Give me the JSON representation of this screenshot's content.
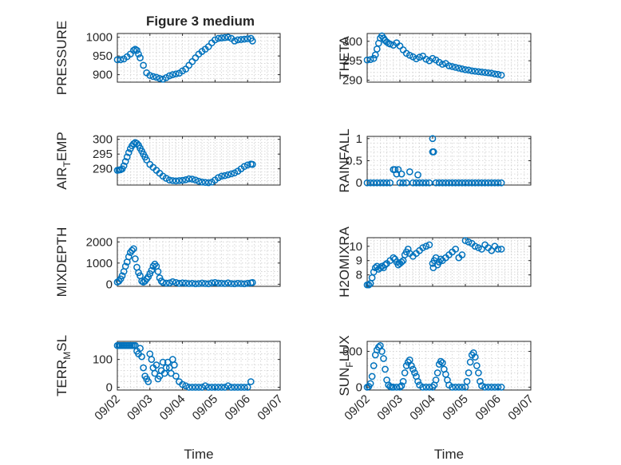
{
  "figure_title": "Figure 3 medium",
  "marker_color": "#0072BD",
  "x_axis": {
    "label": "Time",
    "ticks": [
      "09/02",
      "09/03",
      "09/04",
      "09/05",
      "09/06",
      "09/07"
    ],
    "range": [
      0,
      5
    ]
  },
  "chart_data": [
    {
      "type": "scatter",
      "name": "pressure",
      "column": "left",
      "ylabel": "PRESSURE",
      "ylabel_sub": "",
      "ylabel_tail": "",
      "ylim": [
        880,
        1010
      ],
      "yticks": [
        900,
        950,
        1000
      ],
      "yticklabels": [
        "900",
        "950",
        "1000"
      ],
      "grid": true,
      "x": [
        0.0,
        0.1,
        0.2,
        0.3,
        0.4,
        0.5,
        0.55,
        0.6,
        0.65,
        0.7,
        0.8,
        0.9,
        1.0,
        1.1,
        1.2,
        1.3,
        1.4,
        1.5,
        1.6,
        1.7,
        1.8,
        1.9,
        2.0,
        2.1,
        2.2,
        2.3,
        2.4,
        2.5,
        2.6,
        2.7,
        2.8,
        2.9,
        3.0,
        3.1,
        3.2,
        3.3,
        3.4,
        3.5,
        3.6,
        3.7,
        3.8,
        3.9,
        4.0,
        4.1,
        4.15
      ],
      "y": [
        940,
        940,
        942,
        948,
        955,
        965,
        968,
        965,
        955,
        945,
        925,
        905,
        898,
        895,
        893,
        890,
        888,
        892,
        897,
        900,
        902,
        904,
        910,
        915,
        925,
        935,
        945,
        955,
        962,
        968,
        975,
        985,
        993,
        997,
        998,
        999,
        1000,
        997,
        990,
        993,
        994,
        995,
        996,
        997,
        990
      ]
    },
    {
      "type": "scatter",
      "name": "theta",
      "column": "right",
      "ylabel": "THETA",
      "ylabel_sub": "",
      "ylabel_tail": "",
      "ylim": [
        289.5,
        302
      ],
      "yticks": [
        290,
        295,
        300
      ],
      "yticklabels": [
        "290",
        "295",
        "300"
      ],
      "grid": true,
      "x": [
        0.0,
        0.1,
        0.2,
        0.25,
        0.3,
        0.35,
        0.4,
        0.45,
        0.5,
        0.55,
        0.6,
        0.65,
        0.7,
        0.8,
        0.9,
        1.0,
        1.1,
        1.2,
        1.3,
        1.4,
        1.5,
        1.6,
        1.7,
        1.8,
        1.9,
        2.0,
        2.1,
        2.2,
        2.3,
        2.4,
        2.5,
        2.6,
        2.7,
        2.8,
        2.9,
        3.0,
        3.1,
        3.2,
        3.3,
        3.4,
        3.5,
        3.6,
        3.7,
        3.8,
        3.9,
        4.0,
        4.1
      ],
      "y": [
        295.2,
        295.3,
        295.6,
        296.5,
        298.0,
        299.5,
        300.8,
        301.4,
        300.8,
        300.2,
        299.8,
        299.5,
        299.3,
        299.0,
        299.6,
        298.8,
        297.8,
        296.9,
        296.4,
        296.0,
        295.5,
        295.9,
        296.2,
        295.4,
        295.0,
        295.6,
        295.2,
        294.6,
        294.1,
        294.3,
        293.7,
        293.5,
        293.3,
        293.1,
        292.9,
        292.7,
        292.6,
        292.4,
        292.3,
        292.2,
        292.1,
        292.0,
        291.9,
        291.8,
        291.6,
        291.5,
        291.3
      ]
    },
    {
      "type": "scatter",
      "name": "air_temp",
      "column": "left",
      "ylabel": "AIR",
      "ylabel_sub": "T",
      "ylabel_tail": "EMP",
      "ylim": [
        284.5,
        301
      ],
      "yticks": [
        290,
        295,
        300
      ],
      "yticklabels": [
        "290",
        "295",
        "300"
      ],
      "grid": true,
      "x": [
        0.0,
        0.05,
        0.1,
        0.15,
        0.2,
        0.25,
        0.3,
        0.35,
        0.4,
        0.45,
        0.5,
        0.55,
        0.6,
        0.65,
        0.7,
        0.75,
        0.8,
        0.85,
        0.9,
        1.0,
        1.1,
        1.2,
        1.3,
        1.4,
        1.5,
        1.6,
        1.7,
        1.8,
        1.9,
        2.0,
        2.1,
        2.2,
        2.3,
        2.4,
        2.5,
        2.6,
        2.7,
        2.8,
        2.9,
        3.0,
        3.1,
        3.2,
        3.3,
        3.4,
        3.5,
        3.6,
        3.7,
        3.8,
        3.9,
        4.0,
        4.1,
        4.15
      ],
      "y": [
        289.5,
        289.6,
        289.7,
        290.0,
        291.0,
        292.5,
        294.0,
        295.5,
        296.8,
        297.8,
        298.5,
        298.9,
        298.6,
        298.0,
        297.0,
        296.0,
        295.0,
        294.0,
        293.0,
        291.5,
        290.5,
        289.5,
        288.5,
        287.5,
        286.8,
        286.2,
        286.0,
        285.9,
        286.0,
        286.1,
        286.3,
        286.6,
        286.5,
        286.2,
        285.8,
        285.5,
        285.4,
        285.3,
        285.5,
        286.2,
        287.0,
        287.5,
        287.7,
        288.0,
        288.3,
        288.6,
        289.2,
        290.0,
        290.8,
        291.3,
        291.6,
        291.5
      ]
    },
    {
      "type": "scatter",
      "name": "rainfall",
      "column": "right",
      "ylabel": "RAINFALL",
      "ylabel_sub": "",
      "ylabel_tail": "",
      "ylim": [
        -0.05,
        1.05
      ],
      "yticks": [
        0,
        0.5,
        1
      ],
      "yticklabels": [
        "0",
        "0.5",
        "1"
      ],
      "grid": true,
      "x": [
        0.0,
        0.1,
        0.2,
        0.3,
        0.4,
        0.5,
        0.6,
        0.7,
        0.8,
        0.85,
        0.9,
        0.95,
        1.0,
        1.05,
        1.1,
        1.2,
        1.3,
        1.4,
        1.5,
        1.55,
        1.6,
        1.7,
        1.8,
        1.9,
        2.0,
        2.0,
        2.03,
        2.1,
        2.2,
        2.3,
        2.4,
        2.5,
        2.6,
        2.7,
        2.8,
        2.9,
        3.0,
        3.1,
        3.2,
        3.3,
        3.4,
        3.5,
        3.6,
        3.7,
        3.8,
        3.9,
        4.0,
        4.1
      ],
      "y": [
        0,
        0,
        0,
        0,
        0,
        0,
        0,
        0,
        0.3,
        0.3,
        0.2,
        0.3,
        0,
        0.2,
        0,
        0,
        0.25,
        0,
        0,
        0.18,
        0,
        0,
        0,
        0,
        1.0,
        0.7,
        0.7,
        0,
        0,
        0,
        0,
        0,
        0,
        0,
        0,
        0,
        0,
        0,
        0,
        0,
        0,
        0,
        0,
        0,
        0,
        0,
        0,
        0
      ]
    },
    {
      "type": "scatter",
      "name": "mixdepth",
      "column": "left",
      "ylabel": "MIXDEPTH",
      "ylabel_sub": "",
      "ylabel_tail": "",
      "ylim": [
        -100,
        2200
      ],
      "yticks": [
        0,
        1000,
        2000
      ],
      "yticklabels": [
        "0",
        "1000",
        "2000"
      ],
      "grid": true,
      "x": [
        0.0,
        0.05,
        0.1,
        0.15,
        0.2,
        0.25,
        0.3,
        0.35,
        0.4,
        0.45,
        0.5,
        0.55,
        0.6,
        0.65,
        0.7,
        0.75,
        0.8,
        0.85,
        0.9,
        0.95,
        1.0,
        1.05,
        1.1,
        1.15,
        1.2,
        1.25,
        1.3,
        1.35,
        1.4,
        1.5,
        1.6,
        1.7,
        1.8,
        1.9,
        2.0,
        2.1,
        2.2,
        2.3,
        2.4,
        2.5,
        2.6,
        2.7,
        2.8,
        2.9,
        3.0,
        3.1,
        3.2,
        3.3,
        3.4,
        3.5,
        3.6,
        3.7,
        3.8,
        3.9,
        4.0,
        4.1,
        4.15
      ],
      "y": [
        100,
        150,
        250,
        400,
        600,
        850,
        1050,
        1300,
        1500,
        1600,
        1680,
        1200,
        800,
        550,
        400,
        150,
        100,
        150,
        250,
        350,
        500,
        650,
        850,
        950,
        850,
        600,
        300,
        150,
        80,
        50,
        60,
        120,
        80,
        40,
        60,
        50,
        30,
        40,
        20,
        30,
        50,
        30,
        20,
        60,
        80,
        50,
        40,
        30,
        60,
        30,
        20,
        40,
        30,
        20,
        40,
        60,
        80
      ]
    },
    {
      "type": "scatter",
      "name": "h2omixra",
      "column": "right",
      "ylabel": "H2OMIXRA",
      "ylabel_sub": "",
      "ylabel_tail": "",
      "ylim": [
        7.2,
        10.6
      ],
      "yticks": [
        8,
        9,
        10
      ],
      "yticklabels": [
        "8",
        "9",
        "10"
      ],
      "grid": true,
      "x": [
        0.0,
        0.05,
        0.1,
        0.15,
        0.2,
        0.25,
        0.3,
        0.35,
        0.4,
        0.45,
        0.5,
        0.55,
        0.6,
        0.7,
        0.8,
        0.85,
        0.9,
        0.95,
        1.0,
        1.05,
        1.1,
        1.15,
        1.2,
        1.25,
        1.3,
        1.4,
        1.5,
        1.6,
        1.7,
        1.8,
        1.9,
        2.0,
        2.02,
        2.05,
        2.1,
        2.15,
        2.2,
        2.25,
        2.3,
        2.4,
        2.5,
        2.6,
        2.7,
        2.8,
        2.9,
        3.0,
        3.1,
        3.2,
        3.3,
        3.4,
        3.5,
        3.6,
        3.7,
        3.8,
        3.9,
        4.0,
        4.1
      ],
      "y": [
        7.3,
        7.3,
        7.4,
        7.8,
        8.2,
        8.5,
        8.6,
        8.4,
        8.5,
        8.6,
        8.5,
        8.7,
        8.8,
        9.0,
        9.2,
        9.1,
        8.9,
        8.7,
        8.8,
        8.9,
        9.0,
        9.4,
        9.6,
        9.8,
        9.5,
        9.3,
        9.5,
        9.7,
        9.9,
        10.0,
        10.1,
        8.8,
        8.5,
        9.0,
        9.2,
        8.7,
        8.9,
        9.1,
        9.0,
        9.2,
        9.4,
        9.6,
        9.8,
        9.2,
        9.4,
        10.4,
        10.3,
        10.2,
        10.0,
        9.9,
        9.8,
        10.1,
        9.9,
        9.7,
        10.0,
        9.8,
        9.8
      ]
    },
    {
      "type": "scatter",
      "name": "terr_msl",
      "column": "left",
      "ylabel": "TERR",
      "ylabel_sub": "M",
      "ylabel_tail": "SL",
      "ylim": [
        -10,
        165
      ],
      "yticks": [
        0,
        100
      ],
      "yticklabels": [
        "0",
        "100"
      ],
      "grid": true,
      "x": [
        0.0,
        0.05,
        0.1,
        0.15,
        0.2,
        0.25,
        0.3,
        0.35,
        0.4,
        0.45,
        0.5,
        0.55,
        0.6,
        0.65,
        0.7,
        0.75,
        0.8,
        0.85,
        0.9,
        0.95,
        1.0,
        1.05,
        1.1,
        1.15,
        1.2,
        1.25,
        1.3,
        1.35,
        1.4,
        1.45,
        1.5,
        1.55,
        1.6,
        1.65,
        1.7,
        1.75,
        1.8,
        1.9,
        2.0,
        2.1,
        2.2,
        2.3,
        2.4,
        2.5,
        2.6,
        2.7,
        2.8,
        2.9,
        3.0,
        3.1,
        3.2,
        3.3,
        3.4,
        3.5,
        3.6,
        3.7,
        3.8,
        3.9,
        4.0,
        4.1
      ],
      "y": [
        150,
        150,
        150,
        150,
        150,
        150,
        150,
        150,
        150,
        150,
        150,
        150,
        130,
        120,
        140,
        110,
        70,
        40,
        30,
        20,
        120,
        100,
        70,
        50,
        80,
        30,
        40,
        60,
        90,
        50,
        70,
        90,
        70,
        50,
        100,
        80,
        40,
        20,
        10,
        5,
        0,
        0,
        0,
        0,
        0,
        5,
        0,
        0,
        0,
        0,
        0,
        0,
        5,
        0,
        0,
        0,
        0,
        0,
        0,
        20
      ]
    },
    {
      "type": "scatter",
      "name": "sun_flux",
      "column": "right",
      "ylabel": "SUN",
      "ylabel_sub": "F",
      "ylabel_tail": "LUX",
      "ylim": [
        -40,
        640
      ],
      "yticks": [
        0,
        500
      ],
      "yticklabels": [
        "0",
        "500"
      ],
      "grid": true,
      "x": [
        0.0,
        0.05,
        0.1,
        0.15,
        0.2,
        0.25,
        0.3,
        0.35,
        0.4,
        0.45,
        0.5,
        0.55,
        0.6,
        0.65,
        0.7,
        0.75,
        0.8,
        0.9,
        1.0,
        1.05,
        1.1,
        1.15,
        1.2,
        1.25,
        1.3,
        1.35,
        1.4,
        1.45,
        1.5,
        1.55,
        1.6,
        1.7,
        1.8,
        1.9,
        2.0,
        2.05,
        2.1,
        2.15,
        2.2,
        2.25,
        2.3,
        2.35,
        2.4,
        2.45,
        2.5,
        2.6,
        2.7,
        2.8,
        2.9,
        3.0,
        3.05,
        3.1,
        3.15,
        3.2,
        3.25,
        3.3,
        3.35,
        3.4,
        3.45,
        3.5,
        3.6,
        3.7,
        3.8,
        3.9,
        4.0,
        4.1
      ],
      "y": [
        0,
        10,
        50,
        150,
        300,
        450,
        520,
        560,
        580,
        500,
        400,
        250,
        100,
        30,
        10,
        0,
        0,
        0,
        0,
        20,
        80,
        200,
        300,
        350,
        380,
        300,
        250,
        200,
        150,
        80,
        30,
        0,
        0,
        0,
        0,
        30,
        100,
        200,
        320,
        360,
        340,
        250,
        180,
        100,
        30,
        0,
        0,
        0,
        0,
        0,
        80,
        200,
        350,
        450,
        480,
        420,
        300,
        200,
        80,
        20,
        0,
        0,
        0,
        0,
        0,
        0
      ]
    }
  ]
}
